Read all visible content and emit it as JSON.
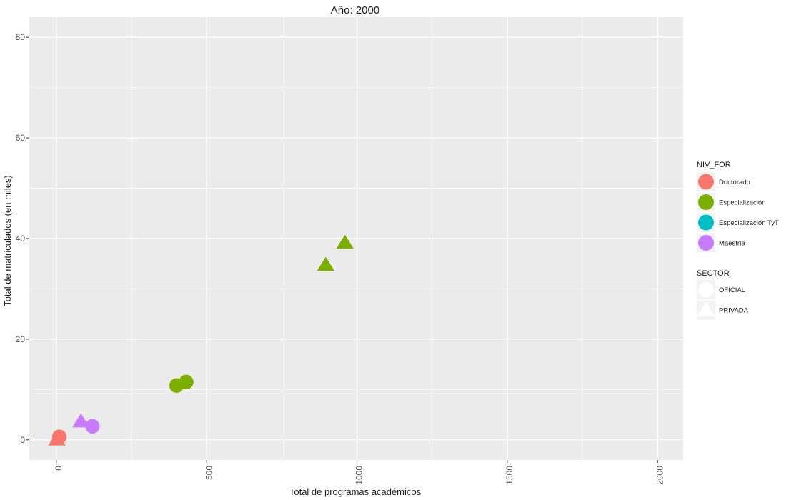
{
  "chart_data": {
    "type": "scatter",
    "title": "Año: 2000",
    "xlabel": "Total de programas académicos",
    "ylabel": "Total de matriculados (en miles)",
    "xlim": [
      -90,
      2085
    ],
    "ylim": [
      -4,
      84
    ],
    "x_ticks": [
      0,
      500,
      1000,
      1500,
      2000
    ],
    "y_ticks": [
      0,
      20,
      40,
      60,
      80
    ],
    "grid": true,
    "legend_position": "right",
    "color_legend": {
      "title": "NIV_FOR",
      "entries": [
        {
          "label": "Doctorado",
          "color": "#F8766D"
        },
        {
          "label": "Especialización",
          "color": "#7CAE00"
        },
        {
          "label": "Especialización TyT",
          "color": "#00BFC4"
        },
        {
          "label": "Maestría",
          "color": "#C77CFF"
        }
      ]
    },
    "shape_legend": {
      "title": "SECTOR",
      "entries": [
        {
          "label": "OFICIAL",
          "shape": "circle"
        },
        {
          "label": "PRIVADA",
          "shape": "triangle"
        }
      ]
    },
    "points": [
      {
        "x": 10,
        "y": 0.6,
        "niv_for": "Doctorado",
        "sector": "OFICIAL"
      },
      {
        "x": 2,
        "y": 0.1,
        "niv_for": "Doctorado",
        "sector": "PRIVADA"
      },
      {
        "x": 120,
        "y": 2.7,
        "niv_for": "Maestría",
        "sector": "OFICIAL"
      },
      {
        "x": 82,
        "y": 3.7,
        "niv_for": "Maestría",
        "sector": "PRIVADA"
      },
      {
        "x": 400,
        "y": 10.8,
        "niv_for": "Especialización",
        "sector": "OFICIAL"
      },
      {
        "x": 432,
        "y": 11.5,
        "niv_for": "Especialización",
        "sector": "OFICIAL"
      },
      {
        "x": 896,
        "y": 34.8,
        "niv_for": "Especialización",
        "sector": "PRIVADA"
      },
      {
        "x": 960,
        "y": 39.2,
        "niv_for": "Especialización",
        "sector": "PRIVADA"
      }
    ]
  }
}
